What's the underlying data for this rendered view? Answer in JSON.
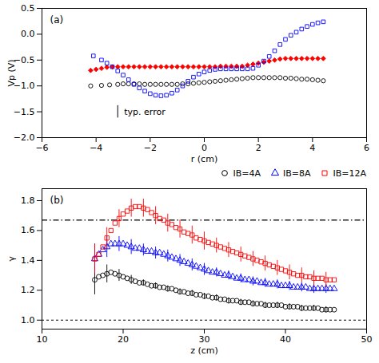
{
  "chart_data": [
    {
      "type": "scatter",
      "title": "(a)",
      "xlabel": "r (cm)",
      "ylabel": "Vp (V)",
      "xlim": [
        -6,
        6
      ],
      "ylim": [
        -2.0,
        0.5
      ],
      "xticks": [
        {
          "value": -6,
          "label": "−6"
        },
        {
          "value": -4,
          "label": "−4"
        },
        {
          "value": -2,
          "label": "−2"
        },
        0,
        2,
        4,
        6
      ],
      "yticks": [
        0.5,
        {
          "value": 0,
          "label": "0.0"
        },
        {
          "value": -0.5,
          "label": "−0.5"
        },
        {
          "value": -1,
          "label": "−1.0"
        },
        {
          "value": -1.5,
          "label": "−1.5"
        },
        {
          "value": -2,
          "label": "−2.0"
        }
      ],
      "series": [
        {
          "color": "black",
          "marker": "circle_open",
          "x": [
            -4.2,
            -3.8,
            -3.5,
            -3.2,
            -3.0,
            -2.8,
            -2.6,
            -2.4,
            -2.2,
            -2.0,
            -1.8,
            -1.6,
            -1.4,
            -1.2,
            -1.0,
            -0.8,
            -0.6,
            -0.4,
            -0.2,
            0.0,
            0.2,
            0.4,
            0.6,
            0.8,
            1.0,
            1.2,
            1.4,
            1.6,
            1.8,
            2.0,
            2.2,
            2.4,
            2.6,
            2.8,
            3.0,
            3.2,
            3.4,
            3.6,
            3.8,
            4.0,
            4.2,
            4.4
          ],
          "values": [
            -1.0,
            -0.99,
            -0.98,
            -0.97,
            -0.96,
            -0.96,
            -0.96,
            -0.96,
            -0.97,
            -0.97,
            -0.97,
            -0.97,
            -0.97,
            -0.97,
            -0.97,
            -0.96,
            -0.96,
            -0.95,
            -0.94,
            -0.93,
            -0.92,
            -0.91,
            -0.9,
            -0.89,
            -0.88,
            -0.87,
            -0.86,
            -0.85,
            -0.84,
            -0.84,
            -0.84,
            -0.84,
            -0.84,
            -0.84,
            -0.85,
            -0.85,
            -0.86,
            -0.87,
            -0.87,
            -0.88,
            -0.89,
            -0.9
          ]
        },
        {
          "color": "red",
          "marker": "diamond_filled",
          "x": [
            -4.2,
            -4.0,
            -3.8,
            -3.6,
            -3.4,
            -3.2,
            -3.0,
            -2.8,
            -2.6,
            -2.4,
            -2.2,
            -2.0,
            -1.8,
            -1.6,
            -1.4,
            -1.2,
            -1.0,
            -0.8,
            -0.6,
            -0.4,
            -0.2,
            0.0,
            0.2,
            0.4,
            0.6,
            0.8,
            1.0,
            1.2,
            1.4,
            1.6,
            1.8,
            2.0,
            2.2,
            2.4,
            2.6,
            2.8,
            3.0,
            3.2,
            3.4,
            3.6,
            3.8,
            4.0,
            4.2,
            4.4
          ],
          "values": [
            -0.7,
            -0.68,
            -0.66,
            -0.64,
            -0.63,
            -0.63,
            -0.63,
            -0.63,
            -0.63,
            -0.63,
            -0.63,
            -0.63,
            -0.63,
            -0.63,
            -0.63,
            -0.63,
            -0.63,
            -0.63,
            -0.63,
            -0.63,
            -0.63,
            -0.63,
            -0.63,
            -0.63,
            -0.62,
            -0.62,
            -0.62,
            -0.62,
            -0.62,
            -0.6,
            -0.58,
            -0.56,
            -0.54,
            -0.52,
            -0.5,
            -0.48,
            -0.47,
            -0.47,
            -0.47,
            -0.47,
            -0.47,
            -0.47,
            -0.47,
            -0.47
          ]
        },
        {
          "color": "blue",
          "marker": "square_open",
          "x": [
            -4.1,
            -3.8,
            -3.6,
            -3.4,
            -3.2,
            -3.0,
            -2.8,
            -2.6,
            -2.4,
            -2.2,
            -2.0,
            -1.8,
            -1.6,
            -1.4,
            -1.2,
            -1.0,
            -0.8,
            -0.6,
            -0.4,
            -0.2,
            0.0,
            0.2,
            0.4,
            0.6,
            0.8,
            1.0,
            1.2,
            1.4,
            1.6,
            1.8,
            2.0,
            2.2,
            2.4,
            2.6,
            2.8,
            3.0,
            3.2,
            3.4,
            3.6,
            3.8,
            4.0,
            4.2,
            4.4
          ],
          "values": [
            -0.42,
            -0.5,
            -0.56,
            -0.63,
            -0.71,
            -0.79,
            -0.88,
            -0.97,
            -1.04,
            -1.1,
            -1.15,
            -1.18,
            -1.19,
            -1.18,
            -1.14,
            -1.08,
            -1.0,
            -0.91,
            -0.83,
            -0.77,
            -0.73,
            -0.7,
            -0.68,
            -0.67,
            -0.67,
            -0.67,
            -0.67,
            -0.67,
            -0.67,
            -0.66,
            -0.6,
            -0.52,
            -0.43,
            -0.32,
            -0.2,
            -0.1,
            -0.02,
            0.04,
            0.1,
            0.15,
            0.19,
            0.22,
            0.24
          ]
        }
      ],
      "annotations": [
        {
          "text": "typ. error",
          "x": -3.2,
          "y": -1.5,
          "error": 0.12
        }
      ]
    },
    {
      "type": "scatter",
      "title": "(b)",
      "xlabel": "z (cm)",
      "ylabel": "γ",
      "xlim": [
        10,
        50
      ],
      "ylim": [
        0.94,
        1.88
      ],
      "xticks": [
        10,
        20,
        30,
        40,
        50
      ],
      "yticks": [
        {
          "value": 1.0,
          "label": "1.0"
        },
        1.2,
        1.4,
        1.6,
        1.8
      ],
      "legend": "upper right",
      "hlines": [
        {
          "y": 1.67,
          "line_style": "dashdot"
        },
        {
          "y": 1.0,
          "line_style": "dotted"
        }
      ],
      "series": [
        {
          "name": "IB=4A",
          "color": "black",
          "marker": "circle_open",
          "x": [
            16.5,
            17.0,
            17.5,
            18.0,
            18.5,
            19.0,
            19.5,
            20.0,
            20.5,
            21.0,
            21.5,
            22.0,
            22.5,
            23.0,
            23.5,
            24.0,
            24.5,
            25.0,
            25.5,
            26.0,
            26.5,
            27.0,
            27.5,
            28.0,
            28.5,
            29.0,
            29.5,
            30.0,
            30.5,
            31.0,
            31.5,
            32.0,
            32.5,
            33.0,
            33.5,
            34.0,
            34.5,
            35.0,
            35.5,
            36.0,
            36.5,
            37.0,
            37.5,
            38.0,
            38.5,
            39.0,
            39.5,
            40.0,
            40.5,
            41.0,
            41.5,
            42.0,
            42.5,
            43.0,
            43.5,
            44.0,
            44.5,
            45.0,
            45.5,
            46.0
          ],
          "values": [
            1.27,
            1.29,
            1.3,
            1.31,
            1.32,
            1.31,
            1.3,
            1.29,
            1.28,
            1.27,
            1.26,
            1.25,
            1.25,
            1.24,
            1.23,
            1.23,
            1.22,
            1.22,
            1.21,
            1.21,
            1.2,
            1.19,
            1.19,
            1.18,
            1.18,
            1.17,
            1.17,
            1.16,
            1.16,
            1.15,
            1.15,
            1.14,
            1.14,
            1.13,
            1.13,
            1.13,
            1.12,
            1.12,
            1.12,
            1.11,
            1.11,
            1.11,
            1.1,
            1.1,
            1.1,
            1.1,
            1.1,
            1.09,
            1.09,
            1.09,
            1.09,
            1.08,
            1.08,
            1.08,
            1.08,
            1.08,
            1.07,
            1.07,
            1.07,
            1.07
          ],
          "errors": [
            0.1,
            null,
            null,
            0.06,
            null,
            null,
            0.04,
            null,
            null,
            0.03,
            null,
            null,
            0.02,
            null,
            null,
            0.02,
            null,
            null,
            0.02,
            null,
            null,
            0.02,
            null,
            null,
            0.02,
            null,
            null,
            0.02,
            null,
            null,
            0.02,
            null,
            null,
            0.02,
            null,
            null,
            0.02,
            null,
            null,
            0.02,
            null,
            null,
            0.02,
            null,
            null,
            0.02,
            null,
            null,
            0.02,
            null,
            null,
            0.02,
            null,
            null,
            0.02,
            null,
            null,
            0.02,
            null,
            null
          ]
        },
        {
          "name": "IB=8A",
          "color": "blue",
          "marker": "triangle_open",
          "x": [
            16.5,
            17.0,
            17.5,
            18.0,
            18.5,
            19.0,
            19.5,
            20.0,
            20.5,
            21.0,
            21.5,
            22.0,
            22.5,
            23.0,
            23.5,
            24.0,
            24.5,
            25.0,
            25.5,
            26.0,
            26.5,
            27.0,
            27.5,
            28.0,
            28.5,
            29.0,
            29.5,
            30.0,
            30.5,
            31.0,
            31.5,
            32.0,
            32.5,
            33.0,
            33.5,
            34.0,
            34.5,
            35.0,
            35.5,
            36.0,
            36.5,
            37.0,
            37.5,
            38.0,
            38.5,
            39.0,
            39.5,
            40.0,
            40.5,
            41.0,
            41.5,
            42.0,
            42.5,
            43.0,
            43.5,
            44.0,
            44.5,
            45.0,
            45.5,
            46.0
          ],
          "values": [
            1.41,
            1.44,
            1.47,
            1.49,
            1.51,
            1.51,
            1.51,
            1.51,
            1.5,
            1.49,
            1.48,
            1.48,
            1.47,
            1.46,
            1.46,
            1.45,
            1.45,
            1.44,
            1.43,
            1.42,
            1.41,
            1.4,
            1.39,
            1.38,
            1.37,
            1.36,
            1.35,
            1.34,
            1.33,
            1.32,
            1.32,
            1.31,
            1.3,
            1.3,
            1.29,
            1.28,
            1.28,
            1.27,
            1.27,
            1.26,
            1.26,
            1.25,
            1.25,
            1.24,
            1.24,
            1.24,
            1.23,
            1.23,
            1.23,
            1.22,
            1.22,
            1.22,
            1.22,
            1.21,
            1.21,
            1.21,
            1.21,
            1.21,
            1.21,
            1.21
          ],
          "errors": [
            0.1,
            null,
            null,
            0.07,
            null,
            null,
            0.05,
            null,
            null,
            0.05,
            null,
            null,
            0.04,
            null,
            null,
            0.04,
            null,
            null,
            0.04,
            null,
            null,
            0.04,
            null,
            null,
            0.04,
            null,
            null,
            0.04,
            null,
            null,
            0.03,
            null,
            null,
            0.03,
            null,
            null,
            0.03,
            null,
            null,
            0.03,
            null,
            null,
            0.03,
            null,
            null,
            0.03,
            null,
            null,
            0.03,
            null,
            null,
            0.03,
            null,
            null,
            0.03,
            null,
            null,
            0.03,
            null,
            null
          ]
        },
        {
          "name": "IB=12A",
          "color": "red",
          "marker": "square_open",
          "x": [
            16.5,
            17.0,
            17.5,
            18.0,
            18.5,
            19.0,
            19.5,
            20.0,
            20.5,
            21.0,
            21.5,
            22.0,
            22.5,
            23.0,
            23.5,
            24.0,
            24.5,
            25.0,
            25.5,
            26.0,
            26.5,
            27.0,
            27.5,
            28.0,
            28.5,
            29.0,
            29.5,
            30.0,
            30.5,
            31.0,
            31.5,
            32.0,
            32.5,
            33.0,
            33.5,
            34.0,
            34.5,
            35.0,
            35.5,
            36.0,
            36.5,
            37.0,
            37.5,
            38.0,
            38.5,
            39.0,
            39.5,
            40.0,
            40.5,
            41.0,
            41.5,
            42.0,
            42.5,
            43.0,
            43.5,
            44.0,
            44.5,
            45.0,
            45.5,
            46.0
          ],
          "values": [
            1.41,
            1.44,
            1.49,
            1.55,
            1.6,
            1.65,
            1.68,
            1.71,
            1.73,
            1.75,
            1.76,
            1.76,
            1.75,
            1.74,
            1.72,
            1.7,
            1.68,
            1.67,
            1.65,
            1.64,
            1.62,
            1.61,
            1.59,
            1.58,
            1.57,
            1.55,
            1.54,
            1.53,
            1.52,
            1.51,
            1.5,
            1.49,
            1.48,
            1.47,
            1.46,
            1.45,
            1.44,
            1.43,
            1.42,
            1.41,
            1.4,
            1.39,
            1.38,
            1.37,
            1.36,
            1.35,
            1.34,
            1.33,
            1.32,
            1.31,
            1.3,
            1.3,
            1.29,
            1.29,
            1.28,
            1.28,
            1.28,
            1.27,
            1.27,
            1.27
          ],
          "errors": [
            0.1,
            null,
            null,
            0.07,
            null,
            null,
            0.06,
            null,
            null,
            0.06,
            null,
            null,
            0.06,
            null,
            null,
            0.06,
            null,
            null,
            0.06,
            null,
            null,
            0.06,
            null,
            null,
            0.06,
            null,
            null,
            0.06,
            null,
            null,
            0.05,
            null,
            null,
            0.05,
            null,
            null,
            0.05,
            null,
            null,
            0.05,
            null,
            null,
            0.05,
            null,
            null,
            0.05,
            null,
            null,
            0.05,
            null,
            null,
            0.05,
            null,
            null,
            0.05,
            null,
            null,
            0.05,
            null,
            null
          ]
        }
      ]
    }
  ]
}
